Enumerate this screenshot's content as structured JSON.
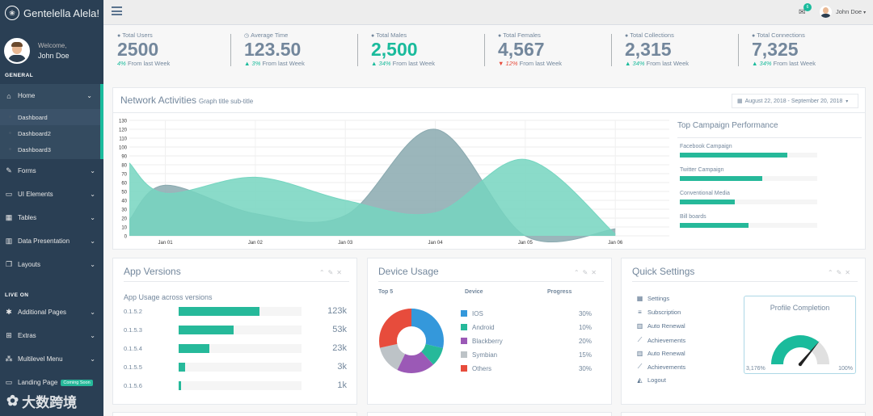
{
  "sidebar": {
    "brand": "Gentelella Alela!",
    "welcome": "Welcome,",
    "user": "John Doe",
    "section_general": "GENERAL",
    "section_live": "LIVE ON",
    "items": [
      {
        "label": "Home",
        "icon": "home-icon"
      },
      {
        "label": "Forms",
        "icon": "edit-icon"
      },
      {
        "label": "UI Elements",
        "icon": "desktop-icon"
      },
      {
        "label": "Tables",
        "icon": "table-icon"
      },
      {
        "label": "Data Presentation",
        "icon": "bar-chart-icon"
      },
      {
        "label": "Layouts",
        "icon": "clone-icon"
      }
    ],
    "home_sub": [
      "Dashboard",
      "Dashboard2",
      "Dashboard3"
    ],
    "live_items": [
      {
        "label": "Additional Pages",
        "icon": "bug-icon"
      },
      {
        "label": "Extras",
        "icon": "windows-icon"
      },
      {
        "label": "Multilevel Menu",
        "icon": "sitemap-icon"
      },
      {
        "label": "Landing Page",
        "icon": "laptop-icon"
      }
    ],
    "coming_soon": "Coming Soon",
    "watermark": "大数跨境"
  },
  "topnav": {
    "user": "John Doe",
    "mail_count": "6"
  },
  "tiles": [
    {
      "title": "Total Users",
      "count": "2500",
      "change": "4%",
      "suffix": "From last Week",
      "trend": "up",
      "green": false
    },
    {
      "title": "Average Time",
      "count": "123.50",
      "change": "3%",
      "suffix": "From last Week",
      "trend": "up",
      "green": false
    },
    {
      "title": "Total Males",
      "count": "2,500",
      "change": "34%",
      "suffix": "From last Week",
      "trend": "up",
      "green": true
    },
    {
      "title": "Total Females",
      "count": "4,567",
      "change": "12%",
      "suffix": "From last Week",
      "trend": "down",
      "green": false
    },
    {
      "title": "Total Collections",
      "count": "2,315",
      "change": "34%",
      "suffix": "From last Week",
      "trend": "up",
      "green": false
    },
    {
      "title": "Total Connections",
      "count": "7,325",
      "change": "34%",
      "suffix": "From last Week",
      "trend": "up",
      "green": false
    }
  ],
  "network": {
    "title": "Network Activities",
    "subtitle": "Graph title sub-title",
    "date_range": "August 22, 2018 - September 20, 2018",
    "campaign_title": "Top Campaign Performance",
    "campaigns": [
      {
        "name": "Facebook Campaign",
        "value": 0.78
      },
      {
        "name": "Twitter Campaign",
        "value": 0.6
      },
      {
        "name": "Conventional Media",
        "value": 0.4
      },
      {
        "name": "Bill boards",
        "value": 0.5
      }
    ]
  },
  "chart_data": {
    "type": "area",
    "x": [
      "Jan 01",
      "Jan 02",
      "Jan 03",
      "Jan 04",
      "Jan 05",
      "Jan 06"
    ],
    "ylim": [
      0,
      130
    ],
    "yticks": [
      0,
      10,
      20,
      30,
      40,
      50,
      60,
      70,
      80,
      90,
      100,
      110,
      120,
      130
    ],
    "series": [
      {
        "points": [
          [
            0.6,
            18
          ],
          [
            1,
            57
          ],
          [
            2,
            25
          ],
          [
            3,
            23
          ],
          [
            4,
            120
          ],
          [
            5,
            0
          ],
          [
            6,
            8
          ]
        ],
        "color": "#8AA9AF"
      },
      {
        "points": [
          [
            0.6,
            82
          ],
          [
            1,
            48
          ],
          [
            2,
            66
          ],
          [
            3,
            40
          ],
          [
            4,
            26
          ],
          [
            5,
            86
          ],
          [
            6,
            2
          ]
        ],
        "color": "#75D5C0"
      }
    ]
  },
  "app_versions": {
    "title": "App Versions",
    "subtitle": "App Usage across versions",
    "rows": [
      {
        "version": "0.1.5.2",
        "count": "123k",
        "value": 0.66
      },
      {
        "version": "0.1.5.3",
        "count": "53k",
        "value": 0.45
      },
      {
        "version": "0.1.5.4",
        "count": "23k",
        "value": 0.25
      },
      {
        "version": "0.1.5.5",
        "count": "3k",
        "value": 0.05
      },
      {
        "version": "0.1.5.6",
        "count": "1k",
        "value": 0.02
      }
    ]
  },
  "device_usage": {
    "title": "Device Usage",
    "col_top": "Top 5",
    "col_device": "Device",
    "col_progress": "Progress",
    "items": [
      {
        "name": "IOS",
        "pct": "30%",
        "value": 30,
        "color": "#3498DB"
      },
      {
        "name": "Android",
        "pct": "10%",
        "value": 10,
        "color": "#26B99A"
      },
      {
        "name": "Blackberry",
        "pct": "20%",
        "value": 20,
        "color": "#9B59B6"
      },
      {
        "name": "Symbian",
        "pct": "15%",
        "value": 15,
        "color": "#BDC3C7"
      },
      {
        "name": "Others",
        "pct": "30%",
        "value": 30,
        "color": "#E74C3C"
      }
    ]
  },
  "quick_settings": {
    "title": "Quick Settings",
    "items": [
      {
        "label": "Settings",
        "icon": "calendar-icon"
      },
      {
        "label": "Subscription",
        "icon": "bars-icon"
      },
      {
        "label": "Auto Renewal",
        "icon": "bar-chart-icon"
      },
      {
        "label": "Achievements",
        "icon": "line-chart-icon"
      },
      {
        "label": "Auto Renewal",
        "icon": "bar-chart-icon"
      },
      {
        "label": "Achievements",
        "icon": "line-chart-icon"
      },
      {
        "label": "Logout",
        "icon": "area-chart-icon"
      }
    ],
    "profile_title": "Profile Completion",
    "gauge_min": "3,176%",
    "gauge_max": "100%",
    "gauge_value": 0.72
  }
}
